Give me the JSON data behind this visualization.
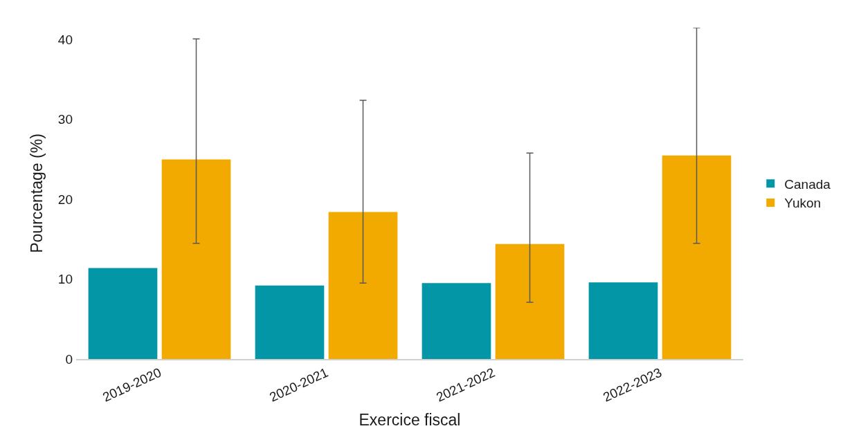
{
  "chart_data": {
    "type": "bar",
    "xlabel": "Exercice fiscal",
    "ylabel": "Pourcentage (%)",
    "categories": [
      "2019-2020",
      "2020-2021",
      "2021-2022",
      "2022-2023"
    ],
    "series": [
      {
        "name": "Canada",
        "color": "#0396a6",
        "values": [
          11.4,
          9.2,
          9.5,
          9.6
        ]
      },
      {
        "name": "Yukon",
        "color": "#f2a900",
        "values": [
          25.0,
          18.4,
          14.4,
          25.5
        ],
        "errors": [
          [
            14.5,
            40.1
          ],
          [
            9.5,
            32.4
          ],
          [
            7.1,
            25.8
          ],
          [
            14.5,
            41.5
          ]
        ]
      }
    ],
    "ylim": [
      0,
      41.5
    ],
    "yticks": [
      0,
      10,
      20,
      30,
      40
    ],
    "legend": "right"
  }
}
